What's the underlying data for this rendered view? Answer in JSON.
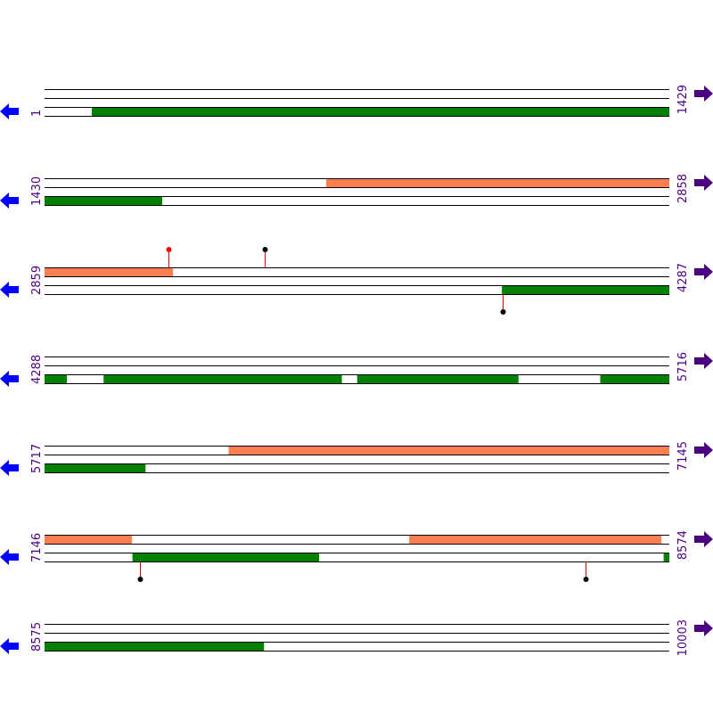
{
  "colors": {
    "forward_feature": "#FF7F50",
    "reverse_feature": "#008000",
    "forward_arrow": "#4B0082",
    "reverse_arrow": "#0000FF",
    "coordinate_text": "#4B0082",
    "stem": "#CC0000",
    "marker_red": "#FF0000",
    "marker_black": "#000000"
  },
  "rows": [
    {
      "start_label": "1",
      "end_label": "1429",
      "start": 1,
      "end": 1429,
      "forward": [],
      "reverse": [
        [
          109,
          1429
        ]
      ],
      "markers": []
    },
    {
      "start_label": "1430",
      "end_label": "2858",
      "start": 1430,
      "end": 2858,
      "forward": [
        [
          2074,
          2858
        ]
      ],
      "reverse": [
        [
          1430,
          1698
        ]
      ],
      "markers": []
    },
    {
      "start_label": "2859",
      "end_label": "4287",
      "start": 2859,
      "end": 4287,
      "forward": [
        [
          2859,
          3152
        ]
      ],
      "reverse": [
        [
          3905,
          4287
        ]
      ],
      "markers": [
        {
          "pos": 3143,
          "side": "top",
          "color": "marker_red"
        },
        {
          "pos": 3362,
          "side": "top",
          "color": "marker_black"
        },
        {
          "pos": 3906,
          "side": "bottom",
          "color": "marker_black"
        }
      ]
    },
    {
      "start_label": "4288",
      "end_label": "5716",
      "start": 4288,
      "end": 5716,
      "forward": [],
      "reverse": [
        [
          4288,
          4338
        ],
        [
          4423,
          4967
        ],
        [
          5003,
          5371
        ],
        [
          5559,
          5716
        ]
      ],
      "markers": []
    },
    {
      "start_label": "5717",
      "end_label": "7145",
      "start": 5717,
      "end": 7145,
      "forward": [
        [
          6138,
          7145
        ]
      ],
      "reverse": [
        [
          5717,
          5947
        ]
      ],
      "markers": []
    },
    {
      "start_label": "7146",
      "end_label": "8574",
      "start": 7146,
      "end": 8574,
      "forward": [
        [
          7146,
          7345
        ],
        [
          7980,
          8556
        ]
      ],
      "reverse": [
        [
          7347,
          7773
        ],
        [
          8562,
          8574
        ]
      ],
      "markers": [
        {
          "pos": 7364,
          "side": "bottom",
          "color": "marker_black"
        },
        {
          "pos": 8383,
          "side": "bottom",
          "color": "marker_black"
        }
      ]
    },
    {
      "start_label": "8575",
      "end_label": "10003",
      "start": 8575,
      "end": 10003,
      "forward": [],
      "reverse": [
        [
          8575,
          9076
        ]
      ],
      "markers": []
    }
  ]
}
